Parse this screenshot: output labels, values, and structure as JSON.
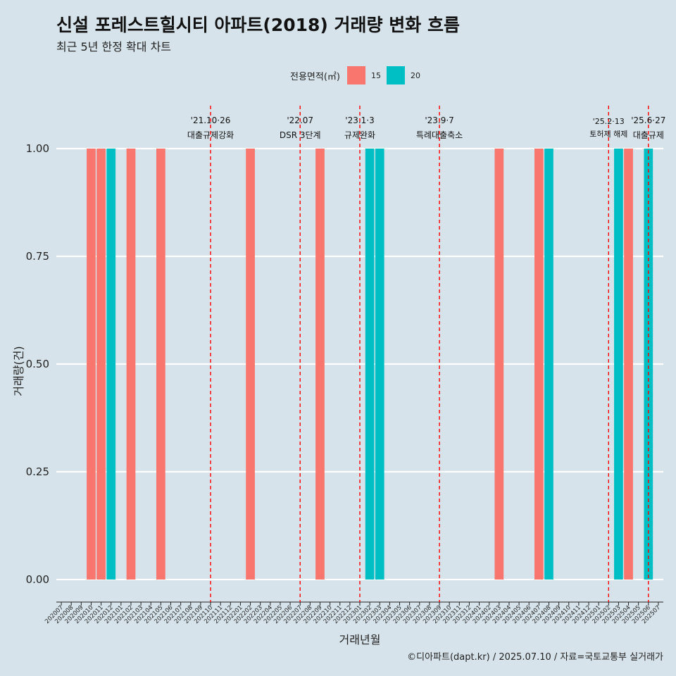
{
  "header": {
    "title": "신설 포레스트힐시티 아파트(2018) 거래량 변화 흐름",
    "subtitle": "최근 5년 한정 확대 차트"
  },
  "legend": {
    "title": "전용면적(㎡)",
    "items": [
      {
        "label": "15",
        "color": "#f8766d"
      },
      {
        "label": "20",
        "color": "#00bfc4"
      }
    ]
  },
  "caption": "©디아파트(dapt.kr) / 2025.07.10 / 자료=국토교통부 실거래가",
  "chart_data": {
    "type": "bar",
    "xlabel": "거래년월",
    "ylabel": "거래량(건)",
    "ylim": [
      0,
      1
    ],
    "grid": true,
    "legend_position": "top",
    "y_ticks": [
      "0.00",
      "0.25",
      "0.50",
      "0.75",
      "1.00"
    ],
    "categories": [
      "202007",
      "202008",
      "202009",
      "202010",
      "202011",
      "202012",
      "202101",
      "202102",
      "202103",
      "202104",
      "202105",
      "202106",
      "202107",
      "202108",
      "202109",
      "202110",
      "202111",
      "202112",
      "202201",
      "202202",
      "202203",
      "202204",
      "202205",
      "202206",
      "202207",
      "202208",
      "202209",
      "202210",
      "202211",
      "202212",
      "202301",
      "202302",
      "202303",
      "202304",
      "202305",
      "202306",
      "202307",
      "202308",
      "202309",
      "202310",
      "202311",
      "202312",
      "202401",
      "202402",
      "202403",
      "202404",
      "202405",
      "202406",
      "202407",
      "202408",
      "202409",
      "202410",
      "202411",
      "202412",
      "202501",
      "202502",
      "202503",
      "202504",
      "202505",
      "202506",
      "202507"
    ],
    "bars": [
      {
        "month": "202010",
        "area": "15",
        "value": 1
      },
      {
        "month": "202011",
        "area": "15",
        "value": 1
      },
      {
        "month": "202012",
        "area": "20",
        "value": 1
      },
      {
        "month": "202102",
        "area": "15",
        "value": 1
      },
      {
        "month": "202105",
        "area": "15",
        "value": 1
      },
      {
        "month": "202202",
        "area": "15",
        "value": 1
      },
      {
        "month": "202209",
        "area": "15",
        "value": 1
      },
      {
        "month": "202302",
        "area": "20",
        "value": 1
      },
      {
        "month": "202303",
        "area": "20",
        "value": 1
      },
      {
        "month": "202403",
        "area": "15",
        "value": 1
      },
      {
        "month": "202407",
        "area": "15",
        "value": 1
      },
      {
        "month": "202408",
        "area": "20",
        "value": 1
      },
      {
        "month": "202503",
        "area": "20",
        "value": 1
      },
      {
        "month": "202504",
        "area": "15",
        "value": 1
      },
      {
        "month": "202506",
        "area": "20",
        "value": 1
      }
    ],
    "events": [
      {
        "month": "202110",
        "date": "'21.10·26",
        "label": "대출규제강화"
      },
      {
        "month": "202207",
        "date": "'22.07",
        "label": "DSR 3단계"
      },
      {
        "month": "202301",
        "date": "'23.1·3",
        "label": "규제완화"
      },
      {
        "month": "202309",
        "date": "'23.9·7",
        "label": "특례대출축소"
      },
      {
        "month": "202502",
        "date": "'25.2·13",
        "label": "토허제 해제"
      },
      {
        "month": "202506",
        "date": "'25.6·27",
        "label": "대출규제"
      }
    ]
  }
}
